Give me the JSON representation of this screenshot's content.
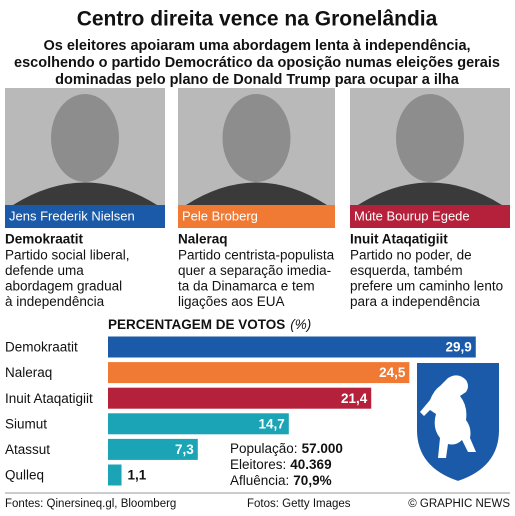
{
  "header": {
    "title": "Centro direita vence na Gronelândia",
    "subtitle": [
      "Os eleitores apoiaram uma abordagem lenta à independência,",
      "escolhendo o partido Democrático da oposição numas eleições gerais",
      "dominadas pelo plano de Donald Trump para ocupar a ilha"
    ]
  },
  "profiles": [
    {
      "name": "Jens Frederik Nielsen",
      "color": "#1a5aa8",
      "party": "Demokraatit",
      "description": [
        "Partido social liberal,",
        "defende uma",
        "abordagem gradual",
        "à independência"
      ]
    },
    {
      "name": "Pele Broberg",
      "color": "#f07a33",
      "party": "Naleraq",
      "description": [
        "Partido centrista-populista",
        "quer a separação imedia-",
        "ta da Dinamarca e tem",
        "ligações aos EUA"
      ]
    },
    {
      "name": "Múte Bourup Egede",
      "color": "#b5213a",
      "party": "Inuit Ataqatigiit",
      "description": [
        "Partido no poder, de",
        "esquerda, também",
        "prefere um caminho lento",
        "para a independência"
      ]
    }
  ],
  "chart_data": {
    "type": "bar",
    "orientation": "horizontal",
    "title": "PERCENTAGEM DE VOTOS",
    "unit": "(%)",
    "categories": [
      "Demokraatit",
      "Naleraq",
      "Inuit Ataqatigiit",
      "Siumut",
      "Atassut",
      "Qulleq"
    ],
    "values": [
      29.9,
      24.5,
      21.4,
      14.7,
      7.3,
      1.1
    ],
    "value_labels": [
      "29,9",
      "24,5",
      "21,4",
      "14,7",
      "7,3",
      "1,1"
    ],
    "colors": [
      "#1a5aa8",
      "#f07a33",
      "#b5213a",
      "#1ba3b6",
      "#1ba3b6",
      "#1ba3b6"
    ]
  },
  "stats": [
    {
      "label": "População:",
      "value": "57.000"
    },
    {
      "label": "Eleitores:",
      "value": "40.369"
    },
    {
      "label": "Afluência:",
      "value": "70,9%"
    }
  ],
  "footer": {
    "sources": "Fontes: Qinersineq.gl, Bloomberg",
    "photos": "Fotos: Getty Images",
    "credit": "© GRAPHIC NEWS"
  }
}
